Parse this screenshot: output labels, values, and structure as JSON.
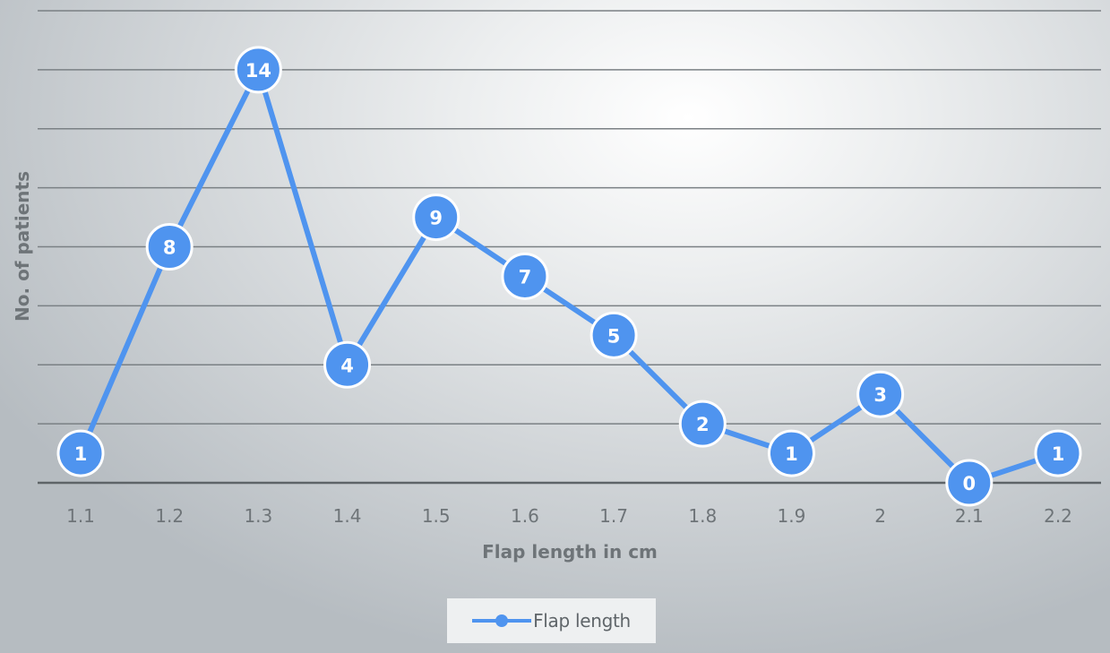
{
  "chart_data": {
    "type": "line",
    "xlabel": "Flap length in cm",
    "ylabel": "No. of patients",
    "categories": [
      "1.1",
      "1.2",
      "1.3",
      "1.4",
      "1.5",
      "1.6",
      "1.7",
      "1.8",
      "1.9",
      "2",
      "2.1",
      "2.2"
    ],
    "series": [
      {
        "name": "Flap length",
        "values": [
          1,
          8,
          14,
          4,
          9,
          7,
          5,
          2,
          1,
          3,
          0,
          1
        ],
        "color": "#4f94ef"
      }
    ],
    "ylim": [
      0,
      16
    ],
    "grid": true,
    "data_labels": true,
    "legend_position": "bottom"
  }
}
